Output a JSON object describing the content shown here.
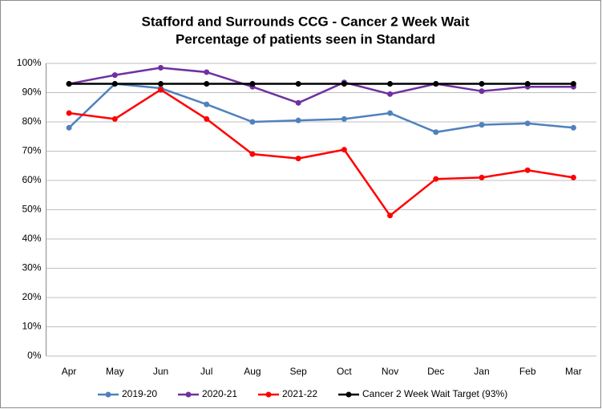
{
  "chart_data": {
    "type": "line",
    "title": "Stafford and Surrounds CCG - Cancer 2 Week Wait",
    "subtitle": "Percentage of patients seen in Standard",
    "categories": [
      "Apr",
      "May",
      "Jun",
      "Jul",
      "Aug",
      "Sep",
      "Oct",
      "Nov",
      "Dec",
      "Jan",
      "Feb",
      "Mar"
    ],
    "series": [
      {
        "name": "2019-20",
        "color": "#4f81bd",
        "values": [
          78,
          93,
          91.5,
          86,
          80,
          80.5,
          81,
          83,
          76.5,
          79,
          79.5,
          78
        ]
      },
      {
        "name": "2020-21",
        "color": "#7030a0",
        "values": [
          93,
          96,
          98.5,
          97,
          92,
          86.5,
          93.5,
          89.5,
          93,
          90.5,
          92,
          92
        ]
      },
      {
        "name": "2021-22",
        "color": "#ff0000",
        "values": [
          83,
          81,
          91,
          81,
          69,
          67.5,
          70.5,
          48,
          60.5,
          61,
          63.5,
          61
        ]
      },
      {
        "name": "Cancer 2 Week Wait Target (93%)",
        "color": "#000000",
        "values": [
          93,
          93,
          93,
          93,
          93,
          93,
          93,
          93,
          93,
          93,
          93,
          93
        ]
      }
    ],
    "ylim": [
      0,
      100
    ],
    "yticks": [
      {
        "value": 0,
        "label": "0%"
      },
      {
        "value": 10,
        "label": "10%"
      },
      {
        "value": 20,
        "label": "20%"
      },
      {
        "value": 30,
        "label": "30%"
      },
      {
        "value": 40,
        "label": "40%"
      },
      {
        "value": 50,
        "label": "50%"
      },
      {
        "value": 60,
        "label": "60%"
      },
      {
        "value": 70,
        "label": "70%"
      },
      {
        "value": 80,
        "label": "80%"
      },
      {
        "value": 90,
        "label": "90%"
      },
      {
        "value": 100,
        "label": "100%"
      }
    ],
    "grid": true,
    "legend": "bottom"
  }
}
